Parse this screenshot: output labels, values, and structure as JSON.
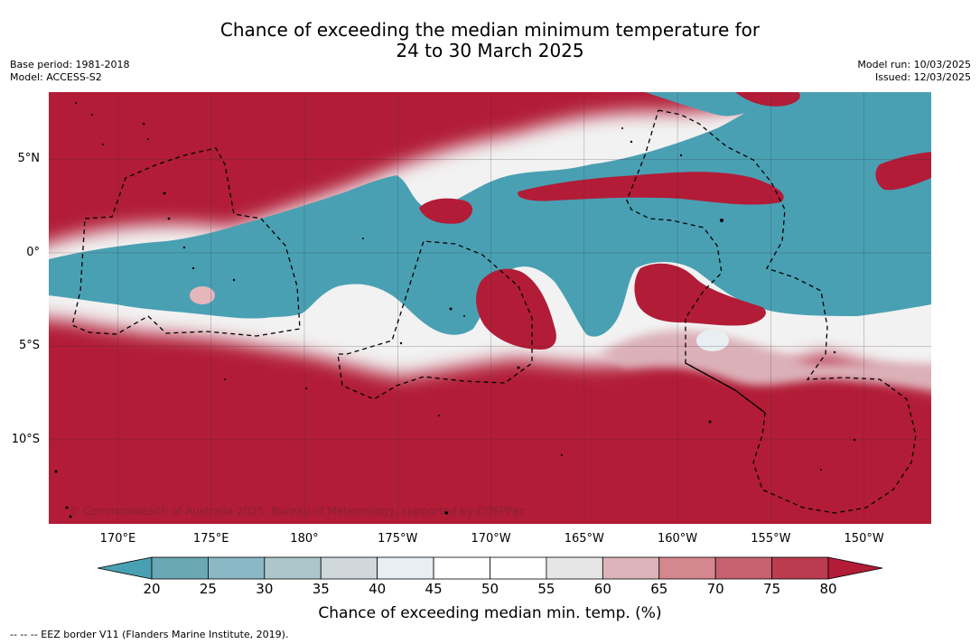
{
  "title_line1": "Chance of exceeding the median minimum temperature for",
  "title_line2": "24 to 30 March 2025",
  "base_period": "Base period: 1981-2018",
  "model": "Model: ACCESS-S2",
  "model_run": "Model run: 10/03/2025",
  "issued": "Issued: 12/03/2025",
  "copyright": "© Commonwealth of Australia 2025, Bureau of Meteorology, supported by COSPPac",
  "footnote": "--  --  -- EEZ border V11 (Flanders Marine Institute, 2019).",
  "lat_labels": [
    {
      "label": "5°N",
      "value": 5
    },
    {
      "label": "0°",
      "value": 0
    },
    {
      "label": "5°S",
      "value": -5
    },
    {
      "label": "10°S",
      "value": -10
    }
  ],
  "lon_labels": [
    {
      "label": "170°E",
      "value": 170
    },
    {
      "label": "175°E",
      "value": 175
    },
    {
      "label": "180°",
      "value": 180
    },
    {
      "label": "175°W",
      "value": 185
    },
    {
      "label": "170°W",
      "value": 190
    },
    {
      "label": "165°W",
      "value": 195
    },
    {
      "label": "160°W",
      "value": 200
    },
    {
      "label": "155°W",
      "value": 205
    },
    {
      "label": "150°W",
      "value": 210
    }
  ],
  "extent": {
    "lon_min": 166.3,
    "lon_max": 213.6,
    "lat_min": -14.5,
    "lat_max": 8.6
  },
  "colorbar": {
    "label": "Chance of exceeding median min. temp. (%)",
    "ticks": [
      "20",
      "25",
      "30",
      "35",
      "40",
      "45",
      "50",
      "55",
      "60",
      "65",
      "70",
      "75",
      "80"
    ],
    "under_color": "#4aa0b3",
    "over_color": "#b21c37",
    "colors": [
      "#6aa8b5",
      "#8ab8c4",
      "#adc6cb",
      "#d0d8dc",
      "#e8eef2",
      "#ffffff",
      "#ffffff",
      "#e6e6e6",
      "#ddb3ba",
      "#d4878f",
      "#c76070",
      "#ba3c4e"
    ]
  },
  "palette": {
    "cool": "#4aa0b3",
    "warm": "#b21c37",
    "neutral": "#ffffff"
  }
}
